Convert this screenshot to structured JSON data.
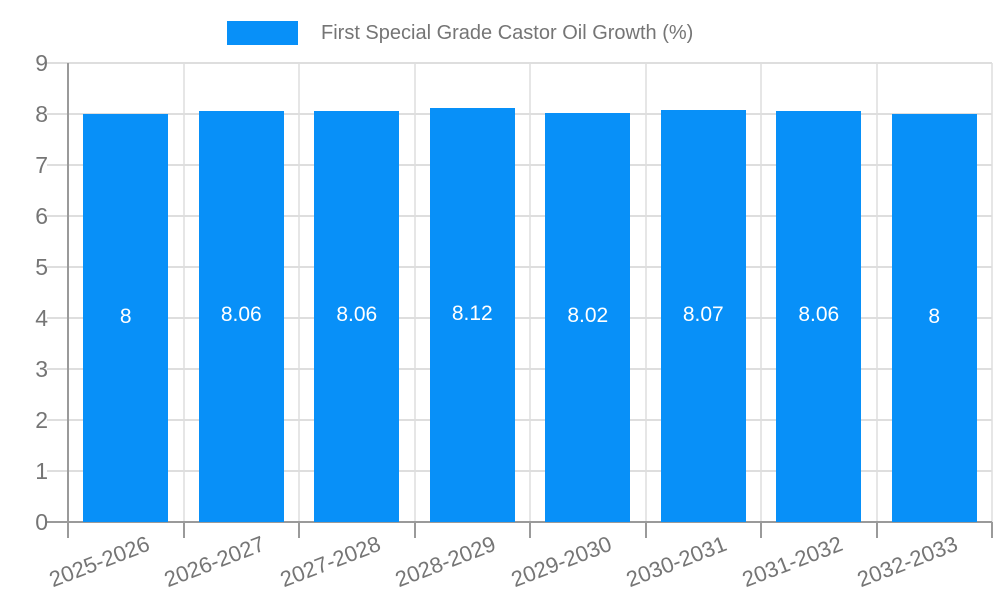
{
  "legend": {
    "label": "First Special Grade Castor Oil Growth (%)",
    "swatch_color": "#0890F8"
  },
  "chart_data": {
    "type": "bar",
    "title": "First Special Grade Castor Oil Growth (%)",
    "categories": [
      "2025-2026",
      "2026-2027",
      "2027-2028",
      "2028-2029",
      "2029-2030",
      "2030-2031",
      "2031-2032",
      "2032-2033"
    ],
    "values": [
      8,
      8.06,
      8.06,
      8.12,
      8.02,
      8.07,
      8.06,
      8
    ],
    "value_labels": [
      "8",
      "8.06",
      "8.06",
      "8.12",
      "8.02",
      "8.07",
      "8.06",
      "8"
    ],
    "xlabel": "",
    "ylabel": "",
    "ylim": [
      0,
      9
    ],
    "y_ticks": [
      0,
      1,
      2,
      3,
      4,
      5,
      6,
      7,
      8,
      9
    ],
    "grid": true,
    "legend_position": "top",
    "value_label_position": "inside-middle",
    "colors": {
      "bar": "#0890F8",
      "value_label": "#ffffff",
      "axis_text": "#757575",
      "axis_line": "#9a9a9a",
      "h_gridline": "#dedede",
      "v_gridline": "#e6e6e6"
    }
  }
}
